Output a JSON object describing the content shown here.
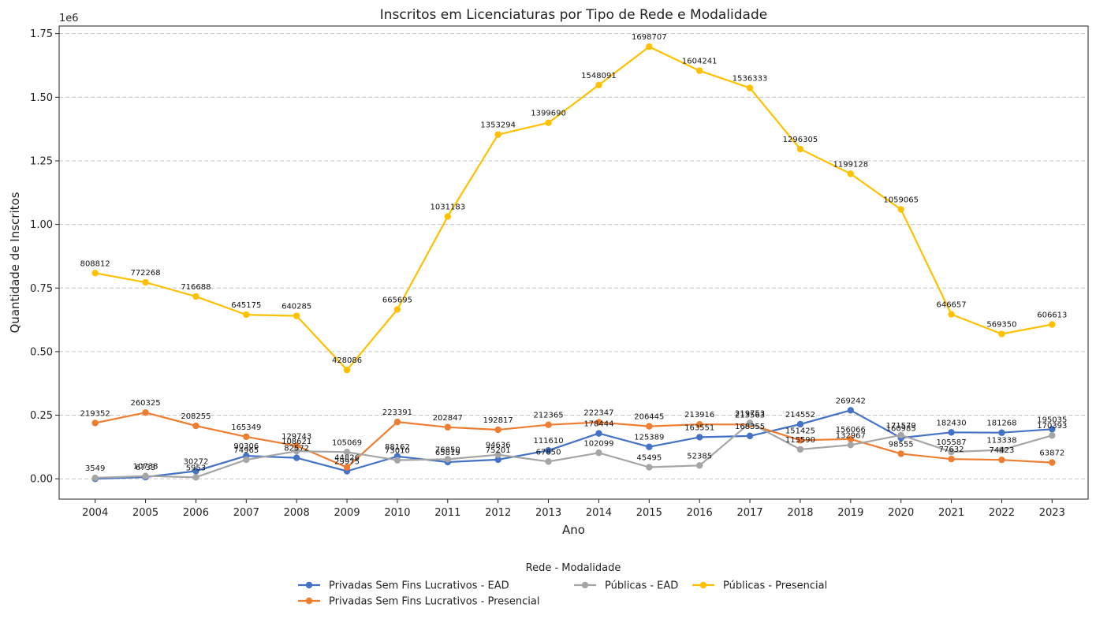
{
  "chart_data": {
    "type": "line",
    "title": "Inscritos em Licenciaturas por Tipo de Rede e Modalidade",
    "xlabel": "Ano",
    "ylabel": "Quantidade de Inscritos",
    "y_scale_label": "1e6",
    "y_scale": 1000000,
    "ylim": [
      -80000,
      1780000
    ],
    "y_ticks": [
      0,
      250000,
      500000,
      750000,
      1000000,
      1250000,
      1500000,
      1750000
    ],
    "y_tick_labels": [
      "0.00",
      "0.25",
      "0.50",
      "0.75",
      "1.00",
      "1.25",
      "1.50",
      "1.75"
    ],
    "grid": "horizontal dashed",
    "legend_title": "Rede - Modalidade",
    "legend_position": "bottom-center",
    "x": [
      "2004",
      "2005",
      "2006",
      "2007",
      "2008",
      "2009",
      "2010",
      "2011",
      "2012",
      "2013",
      "2014",
      "2015",
      "2016",
      "2017",
      "2018",
      "2019",
      "2020",
      "2021",
      "2022",
      "2023"
    ],
    "series": [
      {
        "name": "Privadas Sem Fins Lucrativos - EAD",
        "color": "#4472c4",
        "values": [
          0,
          6733,
          30272,
          90306,
          82572,
          29975,
          88162,
          65819,
          75201,
          111610,
          178444,
          125389,
          163551,
          168355,
          214552,
          269242,
          160985,
          182430,
          181268,
          195035
        ],
        "labels": [
          "",
          "6733",
          "30272",
          "90306",
          "82572",
          "29975",
          "88162",
          "65819",
          "75201",
          "111610",
          "178444",
          "125389",
          "163551",
          "168355",
          "214552",
          "269242",
          "160985",
          "182430",
          "181268",
          "195035"
        ]
      },
      {
        "name": "Privadas Sem Fins Lucrativos - Presencial",
        "color": "#ed7d31",
        "values": [
          219352,
          260325,
          208255,
          165349,
          129743,
          44826,
          223391,
          202847,
          192817,
          212365,
          222347,
          206445,
          213916,
          213563,
          151425,
          156066,
          98555,
          77632,
          74423,
          63872
        ],
        "labels": [
          "219352",
          "260325",
          "208255",
          "165349",
          "129743",
          "44826",
          "223391",
          "202847",
          "192817",
          "212365",
          "222347",
          "206445",
          "213916",
          "213563",
          "151425",
          "156066",
          "98555",
          "77632",
          "74423",
          "63872"
        ]
      },
      {
        "name": "Públicas - EAD",
        "color": "#a5a5a5",
        "values": [
          3549,
          10738,
          5953,
          74965,
          108621,
          105069,
          73010,
          76850,
          94636,
          67850,
          102099,
          45495,
          52385,
          219753,
          115590,
          132967,
          171579,
          105587,
          113338,
          170393
        ],
        "labels": [
          "3549",
          "10738",
          "5953",
          "74965",
          "108621",
          "105069",
          "73010",
          "76850",
          "94636",
          "67850",
          "102099",
          "45495",
          "52385",
          "219753",
          "115590",
          "132967",
          "171579",
          "105587",
          "113338",
          "170393"
        ]
      },
      {
        "name": "Públicas - Presencial",
        "color": "#ffc000",
        "values": [
          808812,
          772268,
          716688,
          645175,
          640285,
          428086,
          665695,
          1031183,
          1353294,
          1399690,
          1548091,
          1698707,
          1604241,
          1536333,
          1296305,
          1199128,
          1059065,
          646657,
          569350,
          606613
        ],
        "labels": [
          "808812",
          "772268",
          "716688",
          "645175",
          "640285",
          "428086",
          "665695",
          "1031183",
          "1353294",
          "1399690",
          "1548091",
          "1698707",
          "1604241",
          "1536333",
          "1296305",
          "1199128",
          "1059065",
          "646657",
          "569350",
          "606613"
        ]
      }
    ]
  }
}
